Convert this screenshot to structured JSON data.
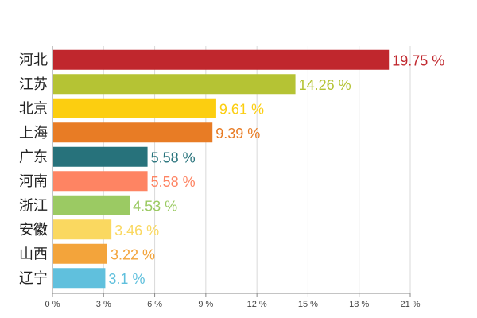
{
  "chart_data": {
    "type": "bar",
    "orientation": "horizontal",
    "categories": [
      "河北",
      "江苏",
      "北京",
      "上海",
      "广东",
      "河南",
      "浙江",
      "安徽",
      "山西",
      "辽宁"
    ],
    "values": [
      19.75,
      14.26,
      9.61,
      9.39,
      5.58,
      5.58,
      4.53,
      3.46,
      3.22,
      3.1
    ],
    "data_labels": [
      "19.75 %",
      "14.26 %",
      "9.61 %",
      "9.39 %",
      "5.58 %",
      "5.58 %",
      "4.53 %",
      "3.46 %",
      "3.22 %",
      "3.1 %"
    ],
    "colors": [
      "#c0272d",
      "#b5c334",
      "#fcce10",
      "#e87c25",
      "#27727b",
      "#fe8463",
      "#9bca63",
      "#fad860",
      "#f3a43b",
      "#60c0dd"
    ],
    "xlim": [
      0,
      21
    ],
    "xticks": [
      0,
      3,
      6,
      9,
      12,
      15,
      18,
      21
    ],
    "xtick_labels": [
      "0 %",
      "3 %",
      "6 %",
      "9 %",
      "12 %",
      "15 %",
      "18 %",
      "21 %"
    ],
    "grid": true,
    "title": "",
    "xlabel": "",
    "ylabel": ""
  }
}
